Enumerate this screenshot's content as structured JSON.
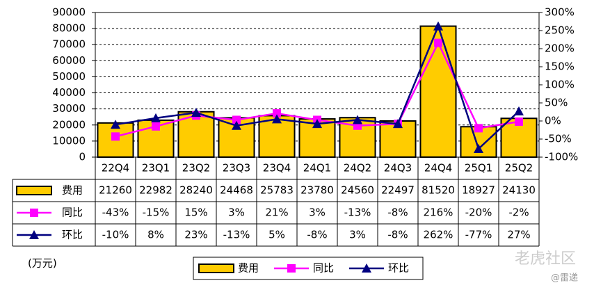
{
  "chart_data": {
    "type": "bar-line",
    "categories": [
      "22Q4",
      "23Q1",
      "23Q2",
      "23Q3",
      "23Q4",
      "24Q1",
      "24Q2",
      "24Q3",
      "24Q4",
      "25Q1",
      "25Q2"
    ],
    "series": [
      {
        "name": "费用",
        "type": "bar",
        "color": "#FFCC00",
        "values": [
          21260,
          22982,
          28240,
          24468,
          25783,
          23780,
          24560,
          22497,
          81520,
          18927,
          24130
        ]
      },
      {
        "name": "同比",
        "type": "line",
        "axis": "y2",
        "color": "#FF00FF",
        "marker": "square",
        "values": [
          -43,
          -15,
          15,
          3,
          21,
          3,
          -13,
          -8,
          216,
          -20,
          -2
        ],
        "value_labels": [
          "-43%",
          "-15%",
          "15%",
          "3%",
          "21%",
          "3%",
          "-13%",
          "-8%",
          "216%",
          "-20%",
          "-2%"
        ]
      },
      {
        "name": "环比",
        "type": "line",
        "axis": "y2",
        "color": "#000080",
        "marker": "triangle",
        "values": [
          -10,
          8,
          23,
          -13,
          5,
          -8,
          3,
          -8,
          262,
          -77,
          27
        ],
        "value_labels": [
          "-10%",
          "8%",
          "23%",
          "-13%",
          "5%",
          "-8%",
          "3%",
          "-8%",
          "262%",
          "-77%",
          "27%"
        ]
      }
    ],
    "ylim": [
      0,
      90000
    ],
    "yticks": [
      0,
      10000,
      20000,
      30000,
      40000,
      50000,
      60000,
      70000,
      80000,
      90000
    ],
    "y2lim": [
      -100,
      300
    ],
    "y2ticks": [
      {
        "value": -100,
        "label": "-100%"
      },
      {
        "value": -50,
        "label": "-50%"
      },
      {
        "value": 0,
        "label": "0%"
      },
      {
        "value": 50,
        "label": "50%"
      },
      {
        "value": 100,
        "label": "100%"
      },
      {
        "value": 150,
        "label": "150%"
      },
      {
        "value": 200,
        "label": "200%"
      },
      {
        "value": 250,
        "label": "250%"
      },
      {
        "value": 300,
        "label": "300%"
      }
    ],
    "unit_label": "(万元)",
    "watermark": "老虎社区",
    "source": "@雷递"
  }
}
